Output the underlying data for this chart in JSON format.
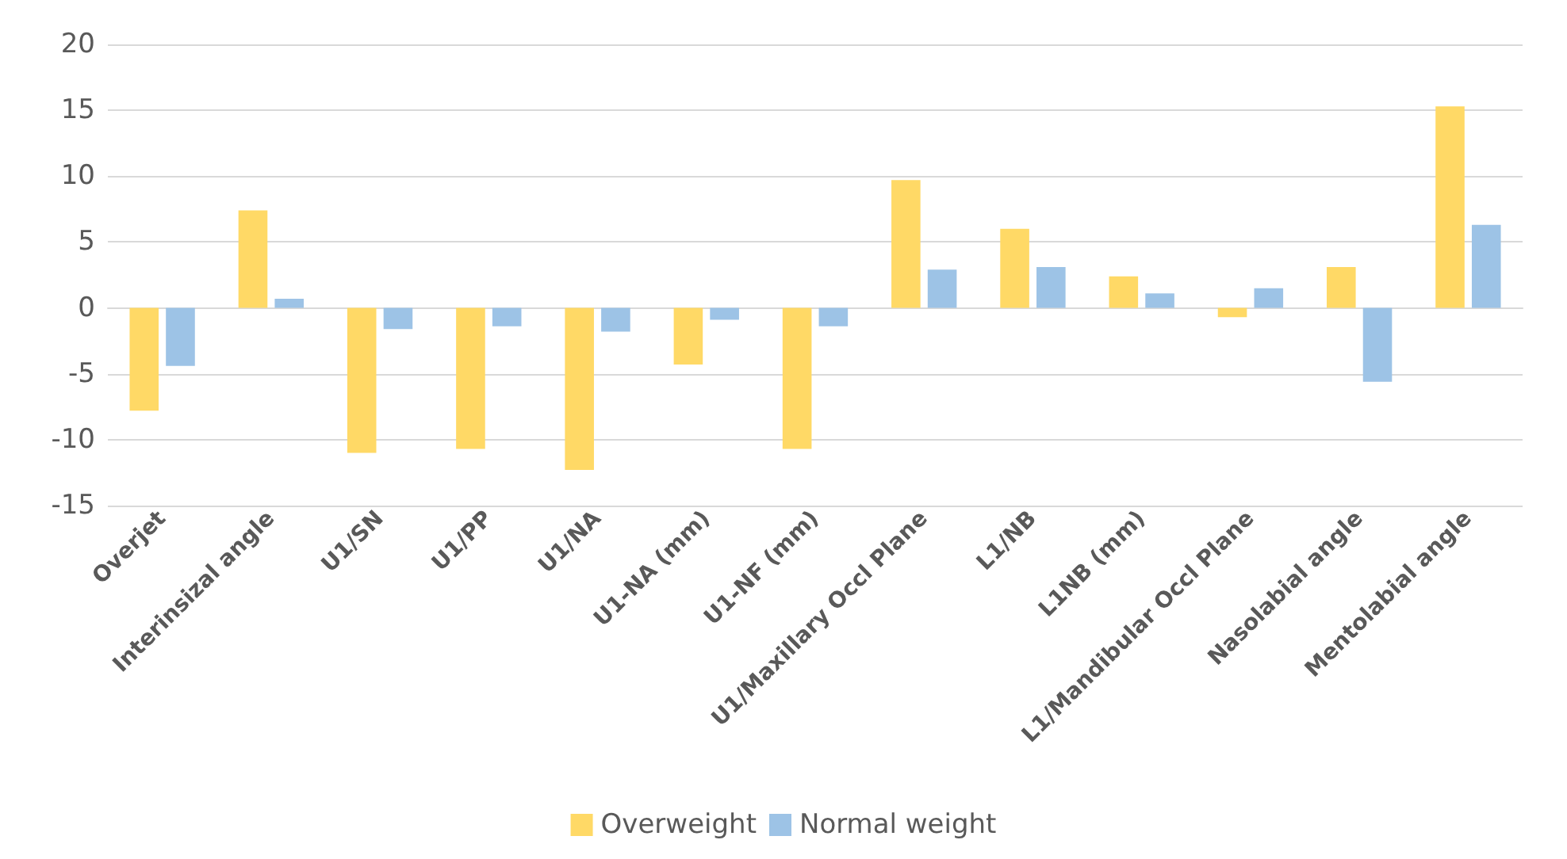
{
  "chart_data": {
    "type": "bar",
    "categories": [
      "Overjet",
      "Interinsizal angle",
      "U1/SN",
      "U1/PP",
      "U1/NA",
      "U1-NA (mm)",
      "U1-NF (mm)",
      "U1/Maxillary Occl Plane",
      "L1/NB",
      "L1NB (mm)",
      "L1/Mandibular Occl Plane",
      "Nasolabial angle",
      "Mentolabial angle"
    ],
    "series": [
      {
        "name": "Overweight",
        "color": "#ffd966",
        "values": [
          -7.8,
          7.4,
          -11.0,
          -10.7,
          -12.3,
          -4.3,
          -10.7,
          9.7,
          6.0,
          2.4,
          -0.7,
          3.1,
          15.3
        ]
      },
      {
        "name": "Normal weight",
        "color": "#9dc3e6",
        "values": [
          -4.4,
          0.7,
          -1.6,
          -1.4,
          -1.8,
          -0.9,
          -1.4,
          2.9,
          3.1,
          1.1,
          1.5,
          -5.6,
          6.3
        ]
      }
    ],
    "ylim": [
      -15,
      20
    ],
    "yticks": [
      -15,
      -10,
      -5,
      0,
      5,
      10,
      15,
      20
    ],
    "grid": "y",
    "legend": "bottom"
  }
}
